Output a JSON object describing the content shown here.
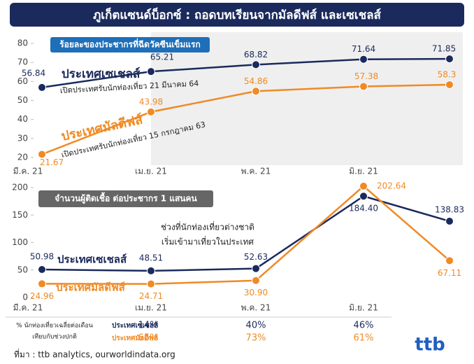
{
  "title": "ภูเก็ตแซนด์บ็อกซ์ : ถอดบทเรียนจากมัลดีฟส์ และเซเชลส์",
  "chart_data": [
    {
      "type": "line",
      "subtitle": "ร้อยละของประชากรที่ฉีดวัคซีนเข็มแรก",
      "categories": [
        "มี.ค. 21",
        "เม.ย. 21",
        "พ.ค. 21",
        "มิ.ย. 21",
        null
      ],
      "series": [
        {
          "name": "ประเทศเซเชลส์",
          "color": "#1b2a5c",
          "values": [
            56.84,
            65.21,
            68.82,
            71.64,
            71.85
          ]
        },
        {
          "name": "ประเทศมัลดีฟส์",
          "color": "#f08a24",
          "values": [
            21.67,
            43.98,
            54.86,
            57.38,
            58.3
          ]
        }
      ],
      "annotations": [
        "เปิดประเทศรับนักท่องเที่ยว 21 มีนาคม 64",
        "เปิดประเทศรับนักท่องเที่ยว 15 กรกฎาคม 63"
      ],
      "ylim": [
        20,
        80
      ],
      "yticks": [
        20,
        30,
        40,
        50,
        60,
        70,
        80
      ]
    },
    {
      "type": "line",
      "subtitle": "จำนวนผู้ติดเชื้อ ต่อประชากร 1 แสนคน",
      "categories": [
        "มี.ค. 21",
        "เม.ย. 21",
        "พ.ค. 21",
        "มิ.ย. 21",
        null
      ],
      "series": [
        {
          "name": "ประเทศเซเชลส์",
          "color": "#1b2a5c",
          "values": [
            50.98,
            48.51,
            52.63,
            184.4,
            138.83
          ],
          "value_labels": [
            "50.98",
            "48.51",
            "52.63",
            "184.40",
            "138.83"
          ]
        },
        {
          "name": "ประเทศมัลดีฟส์",
          "color": "#f08a24",
          "values": [
            24.96,
            24.71,
            30.9,
            202.64,
            67.11
          ],
          "value_labels": [
            "24.96",
            "24.71",
            "30.90",
            "202.64",
            "67.11"
          ]
        }
      ],
      "annotations": [
        "ช่วงที่นักท่องเที่ยวต่างชาติ",
        "เริ่มเข้ามาเที่ยวในประเทศ"
      ],
      "ylim": [
        0,
        200
      ],
      "yticks": [
        0,
        50,
        100,
        150,
        200
      ]
    }
  ],
  "table": {
    "header": [
      "% นักท่องเที่ยวเฉลี่ยต่อเดือน",
      "เทียบกับช่วงปกติ"
    ],
    "rows": [
      [
        "ประเทศเซเชลส์",
        "14%",
        "40%",
        "46%"
      ],
      [
        "ประเทศมัลดีฟส์",
        "65%",
        "73%",
        "61%"
      ]
    ]
  },
  "source": "ที่มา : ttb analytics, ourworldindata.org",
  "logo": "ttb"
}
